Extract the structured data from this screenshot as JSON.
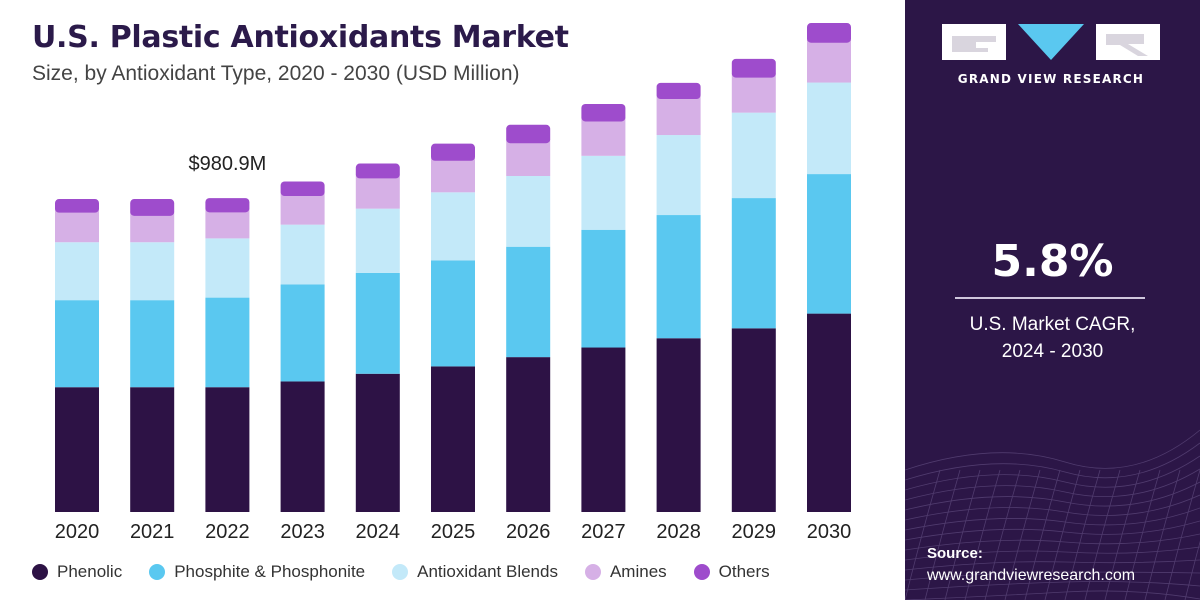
{
  "colors": {
    "panel_bg": "#2c1647",
    "title": "#2b1a4a",
    "phenolic": "#2d1245",
    "phosphite": "#5ac8f0",
    "blends": "#c3e9f9",
    "amines": "#d6b0e6",
    "others": "#9e4ccc"
  },
  "chart_data": {
    "type": "bar",
    "stacked": true,
    "title": "U.S. Plastic Antioxidants Market",
    "subtitle": "Size, by Antioxidant Type, 2020 - 2030 (USD Million)",
    "categories": [
      "2020",
      "2021",
      "2022",
      "2023",
      "2024",
      "2025",
      "2026",
      "2027",
      "2028",
      "2029",
      "2030"
    ],
    "series": [
      {
        "name": "Phenolic",
        "color": "#2d1245",
        "values": [
          390,
          390,
          390,
          408,
          432,
          455,
          484,
          514,
          543,
          574,
          620
        ]
      },
      {
        "name": "Phosphite & Phosphonite",
        "color": "#5ac8f0",
        "values": [
          272,
          272,
          280,
          303,
          315,
          331,
          345,
          368,
          385,
          407,
          436
        ]
      },
      {
        "name": "Antioxidant Blends",
        "color": "#c3e9f9",
        "values": [
          181,
          181,
          185,
          187,
          201,
          213,
          221,
          231,
          250,
          267,
          286
        ]
      },
      {
        "name": "Amines",
        "color": "#d6b0e6",
        "values": [
          105,
          95,
          94,
          102,
          107,
          111,
          115,
          120,
          125,
          122,
          137
        ]
      },
      {
        "name": "Others",
        "color": "#9e4ccc",
        "values": [
          30,
          40,
          32,
          33,
          34,
          41,
          45,
          42,
          38,
          46,
          49
        ]
      }
    ],
    "annotations": [
      {
        "category": "2022",
        "text": "$980.9M"
      }
    ],
    "ylim": [
      0,
      1600
    ],
    "grid": false,
    "legend": "bottom"
  },
  "side_panel": {
    "brand_name": "GRAND VIEW RESEARCH",
    "cagr_value": "5.8%",
    "cagr_label_line1": "U.S. Market CAGR,",
    "cagr_label_line2": "2024 - 2030",
    "source_label": "Source:",
    "source_url": "www.grandviewresearch.com"
  }
}
